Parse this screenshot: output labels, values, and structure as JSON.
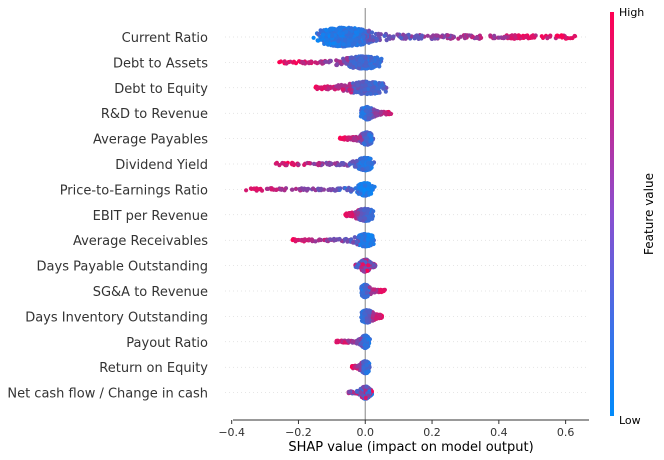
{
  "chart_data": {
    "type": "scatter",
    "subtype": "shap-beeswarm",
    "title": "",
    "xlabel": "SHAP value (impact on model output)",
    "ylabel": "",
    "xlim": [
      -0.42,
      0.67
    ],
    "xticks": [
      -0.4,
      -0.2,
      0.0,
      0.2,
      0.4,
      0.6
    ],
    "xtick_labels": [
      "−0.4",
      "−0.2",
      "0.0",
      "0.2",
      "0.4",
      "0.6"
    ],
    "grid": false,
    "colorbar": {
      "title": "Feature value",
      "high_label": "High",
      "low_label": "Low",
      "low_color": "#008bfb",
      "high_color": "#ff0052"
    },
    "features": [
      {
        "name": "Current Ratio",
        "min": -0.21,
        "max": 0.63,
        "core": [
          -0.13,
          0.0
        ],
        "spread": "high-right"
      },
      {
        "name": "Debt to Assets",
        "min": -0.26,
        "max": 0.14,
        "core": [
          -0.05,
          0.04
        ],
        "spread": "high-left"
      },
      {
        "name": "Debt to Equity",
        "min": -0.15,
        "max": 0.14,
        "core": [
          -0.04,
          0.05
        ],
        "spread": "high-left"
      },
      {
        "name": "R&D to Revenue",
        "min": -0.03,
        "max": 0.08,
        "core": [
          -0.01,
          0.02
        ],
        "spread": "high-right"
      },
      {
        "name": "Average Payables",
        "min": -0.08,
        "max": 0.06,
        "core": [
          -0.01,
          0.02
        ],
        "spread": "high-left"
      },
      {
        "name": "Dividend Yield",
        "min": -0.27,
        "max": 0.08,
        "core": [
          -0.02,
          0.02
        ],
        "spread": "high-left"
      },
      {
        "name": "Price-to-Earnings Ratio",
        "min": -0.36,
        "max": 0.03,
        "core": [
          -0.02,
          0.02
        ],
        "spread": "high-left"
      },
      {
        "name": "EBIT per Revenue",
        "min": -0.06,
        "max": 0.05,
        "core": [
          -0.02,
          0.02
        ],
        "spread": "high-left"
      },
      {
        "name": "Average Receivables",
        "min": -0.22,
        "max": 0.04,
        "core": [
          -0.02,
          0.02
        ],
        "spread": "high-left"
      },
      {
        "name": "Days Payable Outstanding",
        "min": -0.03,
        "max": 0.03,
        "core": [
          -0.01,
          0.01
        ],
        "spread": "mixed"
      },
      {
        "name": "SG&A to Revenue",
        "min": -0.03,
        "max": 0.06,
        "core": [
          -0.01,
          0.01
        ],
        "spread": "high-right"
      },
      {
        "name": "Days Inventory Outstanding",
        "min": -0.03,
        "max": 0.05,
        "core": [
          -0.01,
          0.02
        ],
        "spread": "high-right"
      },
      {
        "name": "Payout Ratio",
        "min": -0.09,
        "max": 0.03,
        "core": [
          -0.01,
          0.01
        ],
        "spread": "high-left"
      },
      {
        "name": "Return on Equity",
        "min": -0.04,
        "max": 0.02,
        "core": [
          -0.01,
          0.01
        ],
        "spread": "high-left"
      },
      {
        "name": "Net cash flow / Change in cash",
        "min": -0.05,
        "max": 0.02,
        "core": [
          -0.01,
          0.01
        ],
        "spread": "mixed"
      }
    ]
  }
}
